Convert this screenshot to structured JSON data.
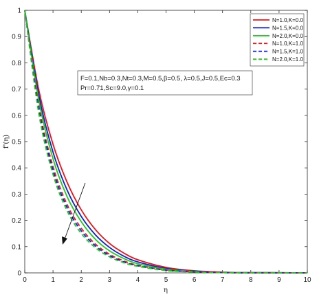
{
  "chart_data": {
    "type": "line",
    "xlabel": "η",
    "ylabel": "f'(η)",
    "xlim": [
      0,
      10
    ],
    "ylim": [
      0,
      1
    ],
    "xticks": [
      "0",
      "1",
      "2",
      "3",
      "4",
      "5",
      "6",
      "7",
      "8",
      "9",
      "10"
    ],
    "yticks": [
      "0",
      "0.1",
      "0.2",
      "0.3",
      "0.4",
      "0.5",
      "0.6",
      "0.7",
      "0.8",
      "0.9",
      "1"
    ],
    "grid": false,
    "legend_position": "top-right",
    "annotation_lines": [
      "F=0.1,Nb=0.3,Nt=0.3,M=0.5,β=0.5, λ=0.5,J=0.5,Ec=0.3",
      "Pr=0.71,Sc=9.0,γ=0.1"
    ],
    "series": [
      {
        "name": "N=1.0,K=0.0",
        "color": "#e8141a",
        "dash": "solid",
        "x": [
          0,
          0.5,
          1,
          1.5,
          2,
          2.5,
          3,
          3.5,
          4,
          5,
          6,
          7,
          8,
          10
        ],
        "y": [
          1.0,
          0.695,
          0.49,
          0.345,
          0.24,
          0.165,
          0.112,
          0.076,
          0.05,
          0.021,
          0.008,
          0.003,
          0.001,
          0.0
        ]
      },
      {
        "name": "N=1.5,K=0.0",
        "color": "#1020c8",
        "dash": "solid",
        "x": [
          0,
          0.5,
          1,
          1.5,
          2,
          2.5,
          3,
          3.5,
          4,
          5,
          6,
          7,
          8,
          10
        ],
        "y": [
          1.0,
          0.675,
          0.46,
          0.315,
          0.215,
          0.145,
          0.097,
          0.064,
          0.042,
          0.017,
          0.006,
          0.002,
          0.001,
          0.0
        ]
      },
      {
        "name": "N=2.0,K=0.0",
        "color": "#22c822",
        "dash": "solid",
        "x": [
          0,
          0.5,
          1,
          1.5,
          2,
          2.5,
          3,
          3.5,
          4,
          5,
          6,
          7,
          8,
          10
        ],
        "y": [
          1.0,
          0.655,
          0.435,
          0.29,
          0.195,
          0.128,
          0.084,
          0.055,
          0.035,
          0.014,
          0.005,
          0.002,
          0.001,
          0.0
        ]
      },
      {
        "name": "N=1.0,K=1.0",
        "color": "#e8141a",
        "dash": "dashed",
        "x": [
          0,
          0.5,
          1,
          1.5,
          2,
          2.5,
          3,
          3.5,
          4,
          5,
          6,
          7,
          8,
          10
        ],
        "y": [
          1.0,
          0.635,
          0.405,
          0.26,
          0.17,
          0.11,
          0.071,
          0.046,
          0.029,
          0.011,
          0.004,
          0.001,
          0.0,
          0.0
        ]
      },
      {
        "name": "N=1.5,K=1.0",
        "color": "#1020c8",
        "dash": "dashed",
        "x": [
          0,
          0.5,
          1,
          1.5,
          2,
          2.5,
          3,
          3.5,
          4,
          5,
          6,
          7,
          8,
          10
        ],
        "y": [
          1.0,
          0.62,
          0.39,
          0.248,
          0.16,
          0.103,
          0.066,
          0.042,
          0.027,
          0.01,
          0.004,
          0.001,
          0.0,
          0.0
        ]
      },
      {
        "name": "N=2.0,K=1.0",
        "color": "#22c822",
        "dash": "dashed",
        "x": [
          0,
          0.5,
          1,
          1.5,
          2,
          2.5,
          3,
          3.5,
          4,
          5,
          6,
          7,
          8,
          10
        ],
        "y": [
          1.0,
          0.605,
          0.375,
          0.236,
          0.15,
          0.096,
          0.061,
          0.039,
          0.025,
          0.009,
          0.003,
          0.001,
          0.0,
          0.0
        ]
      }
    ]
  }
}
